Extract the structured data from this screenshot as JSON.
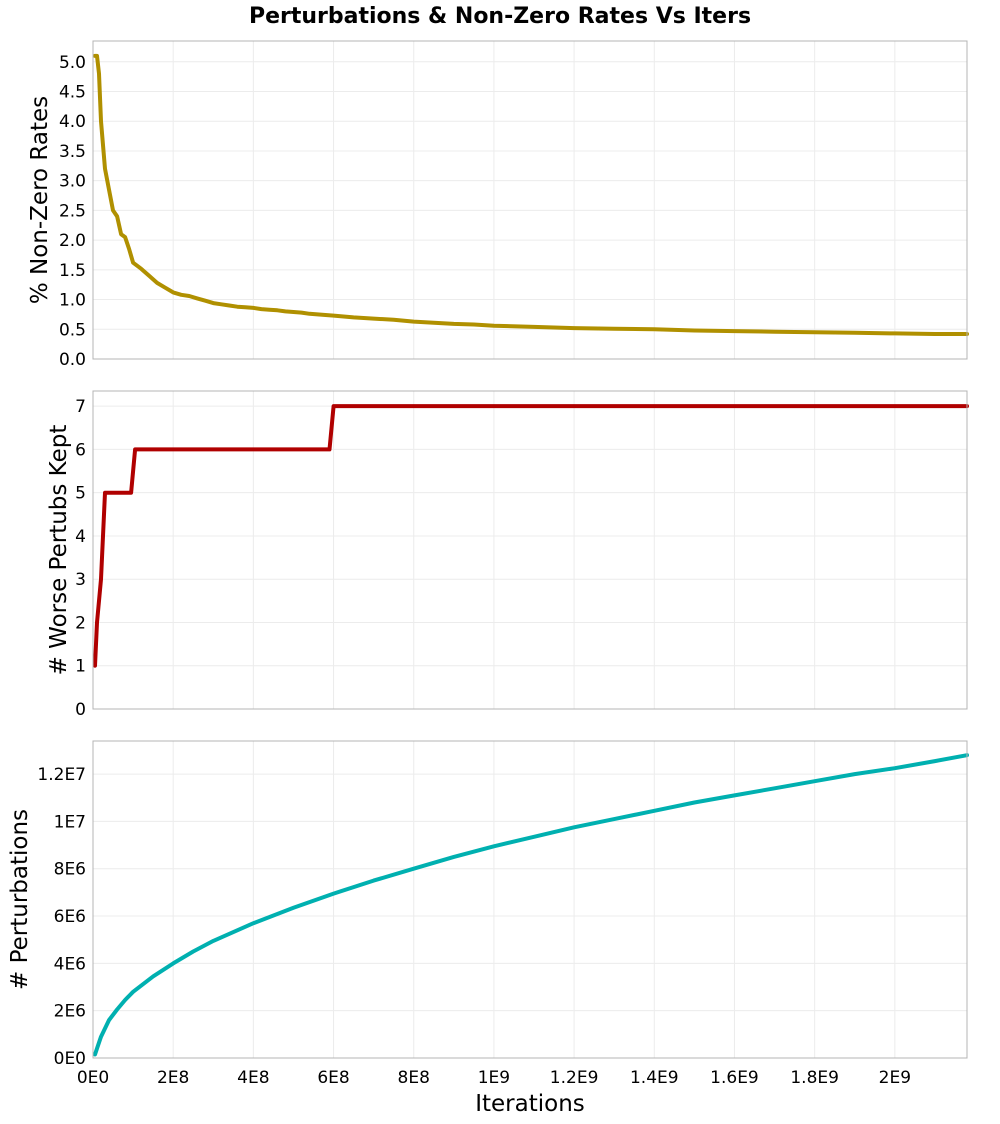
{
  "chart_data": [
    {
      "type": "line",
      "title": "Perturbations & Non-Zero Rates Vs Iters",
      "ylabel": "% Non-Zero Rates",
      "xlabel": "",
      "xlim": [
        0,
        2180000000
      ],
      "ylim": [
        0,
        5.35
      ],
      "x_ticks": [
        0,
        200000000,
        400000000,
        600000000,
        800000000,
        1000000000,
        1200000000,
        1400000000,
        1600000000,
        1800000000,
        2000000000
      ],
      "y_ticks": [
        0,
        0.5,
        1.0,
        1.5,
        2.0,
        2.5,
        3.0,
        3.5,
        4.0,
        4.5,
        5.0
      ],
      "y_tick_labels": [
        "0.0",
        "0.5",
        "1.0",
        "1.5",
        "2.0",
        "2.5",
        "3.0",
        "3.5",
        "4.0",
        "4.5",
        "5.0"
      ],
      "grid": true,
      "series": [
        {
          "color": "#b09000",
          "x": [
            5000000,
            10000000,
            15000000,
            20000000,
            30000000,
            40000000,
            50000000,
            60000000,
            70000000,
            80000000,
            90000000,
            100000000,
            120000000,
            140000000,
            160000000,
            180000000,
            200000000,
            220000000,
            240000000,
            260000000,
            280000000,
            300000000,
            320000000,
            340000000,
            360000000,
            380000000,
            400000000,
            420000000,
            440000000,
            460000000,
            480000000,
            500000000,
            520000000,
            540000000,
            560000000,
            580000000,
            600000000,
            650000000,
            700000000,
            750000000,
            800000000,
            850000000,
            900000000,
            950000000,
            1000000000,
            1100000000,
            1200000000,
            1300000000,
            1400000000,
            1500000000,
            1600000000,
            1700000000,
            1800000000,
            1900000000,
            2000000000,
            2100000000,
            2180000000
          ],
          "y": [
            5.1,
            5.1,
            4.8,
            4.0,
            3.2,
            2.85,
            2.5,
            2.4,
            2.1,
            2.05,
            1.85,
            1.62,
            1.52,
            1.4,
            1.28,
            1.2,
            1.12,
            1.08,
            1.06,
            1.02,
            0.98,
            0.94,
            0.92,
            0.9,
            0.88,
            0.87,
            0.86,
            0.84,
            0.83,
            0.82,
            0.8,
            0.79,
            0.78,
            0.76,
            0.75,
            0.74,
            0.73,
            0.7,
            0.68,
            0.66,
            0.63,
            0.61,
            0.59,
            0.58,
            0.56,
            0.54,
            0.52,
            0.51,
            0.5,
            0.48,
            0.47,
            0.46,
            0.45,
            0.44,
            0.43,
            0.42,
            0.42
          ]
        }
      ]
    },
    {
      "type": "line",
      "title": "",
      "ylabel": "# Worse Pertubs Kept",
      "xlabel": "",
      "xlim": [
        0,
        2180000000
      ],
      "ylim": [
        0,
        7.35
      ],
      "x_ticks": [
        0,
        200000000,
        400000000,
        600000000,
        800000000,
        1000000000,
        1200000000,
        1400000000,
        1600000000,
        1800000000,
        2000000000
      ],
      "y_ticks": [
        0,
        1,
        2,
        3,
        4,
        5,
        6,
        7
      ],
      "y_tick_labels": [
        "0",
        "1",
        "2",
        "3",
        "4",
        "5",
        "6",
        "7"
      ],
      "grid": true,
      "series": [
        {
          "color": "#b00000",
          "x": [
            5000000,
            10000000,
            20000000,
            30000000,
            95000000,
            105000000,
            590000000,
            600000000,
            2180000000
          ],
          "y": [
            1,
            2,
            3,
            5,
            5,
            6,
            6,
            7,
            7
          ]
        }
      ]
    },
    {
      "type": "line",
      "title": "",
      "ylabel": "# Perturbations",
      "xlabel": "Iterations",
      "xlim": [
        0,
        2180000000
      ],
      "ylim": [
        0,
        13400000
      ],
      "x_ticks": [
        0,
        200000000,
        400000000,
        600000000,
        800000000,
        1000000000,
        1200000000,
        1400000000,
        1600000000,
        1800000000,
        2000000000
      ],
      "x_tick_labels": [
        "0E0",
        "2E8",
        "4E8",
        "6E8",
        "8E8",
        "1E9",
        "1.2E9",
        "1.4E9",
        "1.6E9",
        "1.8E9",
        "2E9"
      ],
      "y_ticks": [
        0,
        2000000,
        4000000,
        6000000,
        8000000,
        10000000,
        12000000
      ],
      "y_tick_labels": [
        "0E0",
        "2E6",
        "4E6",
        "6E6",
        "8E6",
        "1E7",
        "1.2E7"
      ],
      "grid": true,
      "series": [
        {
          "color": "#00b0b0",
          "x": [
            5000000,
            10000000,
            20000000,
            40000000,
            60000000,
            80000000,
            100000000,
            150000000,
            200000000,
            250000000,
            300000000,
            400000000,
            500000000,
            600000000,
            700000000,
            800000000,
            900000000,
            1000000000,
            1100000000,
            1200000000,
            1300000000,
            1400000000,
            1500000000,
            1600000000,
            1700000000,
            1800000000,
            1900000000,
            2000000000,
            2100000000,
            2180000000
          ],
          "y": [
            150000,
            400000,
            900000,
            1600000,
            2050000,
            2450000,
            2800000,
            3450000,
            4000000,
            4500000,
            4950000,
            5700000,
            6350000,
            6950000,
            7500000,
            8000000,
            8500000,
            8950000,
            9350000,
            9750000,
            10100000,
            10450000,
            10800000,
            11100000,
            11400000,
            11700000,
            12000000,
            12250000,
            12550000,
            12800000
          ]
        }
      ]
    }
  ]
}
